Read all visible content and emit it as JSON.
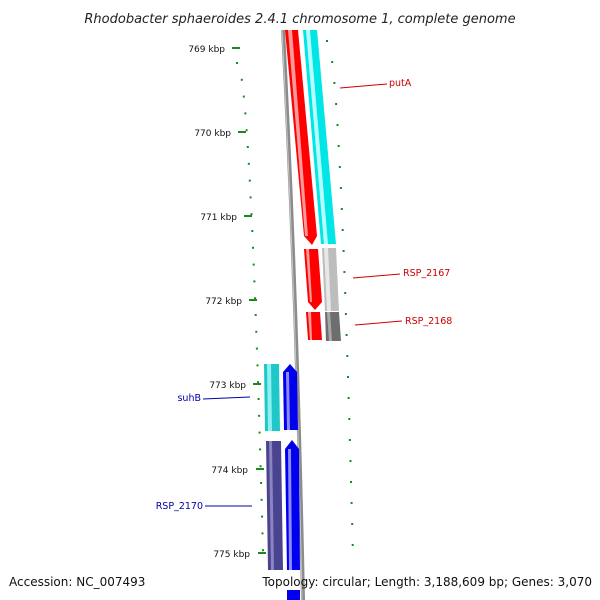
{
  "title": "Rhodobacter sphaeroides 2.4.1 chromosome 1, complete genome",
  "accession": "Accession: NC_007493",
  "topology": "Topology: circular; Length: 3,188,609 bp; Genes: 3,070",
  "colors": {
    "tick": "#1a8a1a",
    "backbone": "#8c8c8c",
    "right_label": "#cc0000",
    "left_label": "#0000aa"
  },
  "ticks": [
    {
      "label": "769 kbp"
    },
    {
      "label": "770 kbp"
    },
    {
      "label": "771 kbp"
    },
    {
      "label": "772 kbp"
    },
    {
      "label": "773 kbp"
    },
    {
      "label": "774 kbp"
    },
    {
      "label": "775 kbp"
    }
  ],
  "features": [
    {
      "name": "putA",
      "color": "#00e5e5",
      "strand": "plus"
    },
    {
      "name": "RSP_2167",
      "color": "#bdbdbd",
      "strand": "plus"
    },
    {
      "name": "RSP_2168",
      "color": "#6e6e6e",
      "strand": "plus"
    },
    {
      "name": "suhB",
      "color": "#1ec8c8",
      "strand": "minus"
    },
    {
      "name": "RSP_2170",
      "color": "#4a4390",
      "strand": "minus"
    }
  ]
}
